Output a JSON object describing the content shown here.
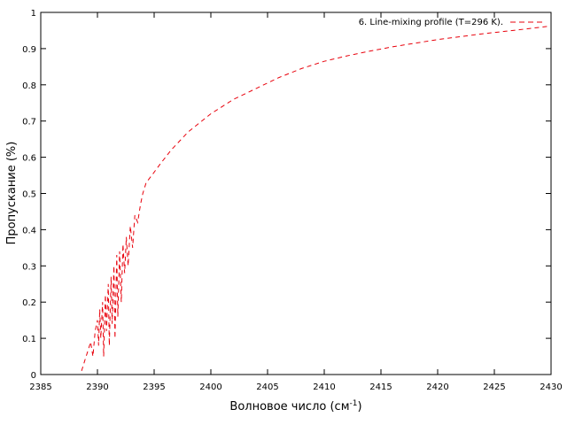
{
  "chart_data": {
    "type": "line",
    "title": "",
    "xlabel": "Волновое число (см",
    "xlabel_sup": "-1",
    "xlabel_tail": ")",
    "ylabel": "Пропускание (%)",
    "xlim": [
      2385,
      2430
    ],
    "ylim": [
      0,
      1
    ],
    "x_ticks": [
      "2385",
      "2390",
      "2395",
      "2400",
      "2405",
      "2410",
      "2415",
      "2420",
      "2425",
      "2430"
    ],
    "y_ticks": [
      "0",
      "0.1",
      "0.2",
      "0.3",
      "0.4",
      "0.5",
      "0.6",
      "0.7",
      "0.8",
      "0.9",
      "1"
    ],
    "grid": false,
    "legend_position": "top-right",
    "series": [
      {
        "name": "6. Line-mixing profile (T=296 K).",
        "color": "#e8000b",
        "line_style": "dashed",
        "x": [
          2388.6,
          2388.9,
          2389.2,
          2389.4,
          2389.6,
          2389.8,
          2390.0,
          2390.1,
          2390.2,
          2390.3,
          2390.45,
          2390.55,
          2390.7,
          2390.8,
          2390.95,
          2391.05,
          2391.2,
          2391.3,
          2391.45,
          2391.55,
          2391.7,
          2391.8,
          2391.95,
          2392.1,
          2392.25,
          2392.4,
          2392.55,
          2392.7,
          2392.9,
          2393.1,
          2393.3,
          2393.55,
          2393.8,
          2394.0,
          2394.3,
          2394.8,
          2395.5,
          2396.5,
          2398.0,
          2400.0,
          2402.0,
          2404.0,
          2406.0,
          2408.0,
          2410.0,
          2412.0,
          2414.0,
          2416.0,
          2418.0,
          2420.0,
          2422.0,
          2424.0,
          2426.0,
          2428.0,
          2429.9
        ],
        "y": [
          0.01,
          0.04,
          0.07,
          0.09,
          0.05,
          0.12,
          0.15,
          0.08,
          0.18,
          0.1,
          0.2,
          0.05,
          0.22,
          0.12,
          0.25,
          0.08,
          0.27,
          0.14,
          0.3,
          0.1,
          0.33,
          0.16,
          0.34,
          0.2,
          0.36,
          0.28,
          0.38,
          0.3,
          0.41,
          0.35,
          0.44,
          0.42,
          0.47,
          0.5,
          0.53,
          0.55,
          0.58,
          0.62,
          0.67,
          0.72,
          0.76,
          0.79,
          0.82,
          0.845,
          0.865,
          0.88,
          0.893,
          0.905,
          0.915,
          0.925,
          0.933,
          0.941,
          0.948,
          0.955,
          0.962
        ]
      }
    ]
  }
}
